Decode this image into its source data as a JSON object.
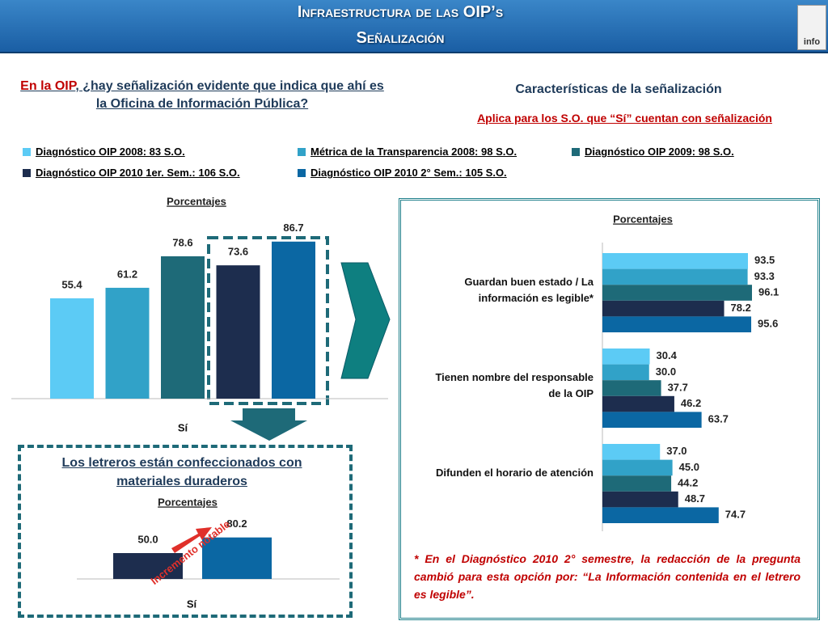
{
  "header": {
    "title": "Infraestructura de las OIP’s",
    "subtitle": "Señalización",
    "logo": "info"
  },
  "question": {
    "highlight": "En la OIP",
    "text": ", ¿hay  señalización evidente que indica que ahí es la Oficina de Información Pública?"
  },
  "characteristics": {
    "title": "Características de la señalización",
    "subtitle": "Aplica para los S.O. que “Sí” cuentan con señalización"
  },
  "footnote": "* En el Diagnóstico 2010 2° semestre, la redacción de la pregunta cambió para esta opción por: “La Información contenida en el letrero es legible”.",
  "chart_data": [
    {
      "type": "bar",
      "title": "Porcentajes",
      "categories": [
        "Sí"
      ],
      "ylim": [
        0,
        100
      ],
      "series": [
        {
          "name": "Diagnóstico OIP 2008: 83 S.O.",
          "color": "#5ccbf5",
          "values": [
            55.4
          ]
        },
        {
          "name": "Métrica de la Transparencia 2008: 98 S.O.",
          "color": "#31a2c8",
          "values": [
            61.2
          ]
        },
        {
          "name": "Diagnóstico OIP 2009: 98 S.O.",
          "color": "#1e6a78",
          "values": [
            78.6
          ]
        },
        {
          "name": "Diagnóstico OIP 2010 1er. Sem.: 106 S.O.",
          "color": "#1d2d4e",
          "values": [
            73.6
          ]
        },
        {
          "name": "Diagnóstico OIP 2010 2° Sem.: 105 S.O.",
          "color": "#0b67a3",
          "values": [
            86.7
          ]
        }
      ]
    },
    {
      "type": "hbar",
      "title": "Porcentajes",
      "categories": [
        "Guardan buen estado / La información es legible*",
        "Tienen nombre del responsable de la OIP",
        "Difunden el horario de atención"
      ],
      "xlim": [
        0,
        100
      ],
      "series": [
        {
          "color": "#5ccbf5",
          "values": [
            93.5,
            30.4,
            37.0
          ],
          "value_labels": [
            "93.5",
            "30.4",
            "37.0"
          ]
        },
        {
          "color": "#31a2c8",
          "values": [
            93.3,
            30.0,
            45.0
          ],
          "value_labels": [
            "93.3",
            "30.0",
            "45.0"
          ]
        },
        {
          "color": "#1e6a78",
          "values": [
            96.1,
            37.7,
            44.2
          ],
          "value_labels": [
            "96.1",
            "37.7",
            "44.2"
          ]
        },
        {
          "color": "#1d2d4e",
          "values": [
            78.2,
            46.2,
            48.7
          ],
          "value_labels": [
            "78.2",
            "46.2",
            "48.7"
          ]
        },
        {
          "color": "#0b67a3",
          "values": [
            95.6,
            63.7,
            74.7
          ],
          "value_labels": [
            "95.6",
            "63.7",
            "74.7"
          ]
        }
      ]
    },
    {
      "type": "bar",
      "title": "Los  letreros están confeccionados con materiales duraderos",
      "axis_title": "Porcentajes",
      "categories": [
        "Sí"
      ],
      "ylim": [
        0,
        100
      ],
      "annotation": "Incremento notable",
      "series": [
        {
          "color": "#1d2d4e",
          "values": [
            50.0
          ],
          "value_labels": [
            "50.0"
          ]
        },
        {
          "color": "#0b67a3",
          "values": [
            80.2
          ],
          "value_labels": [
            "80.2"
          ]
        }
      ]
    }
  ]
}
